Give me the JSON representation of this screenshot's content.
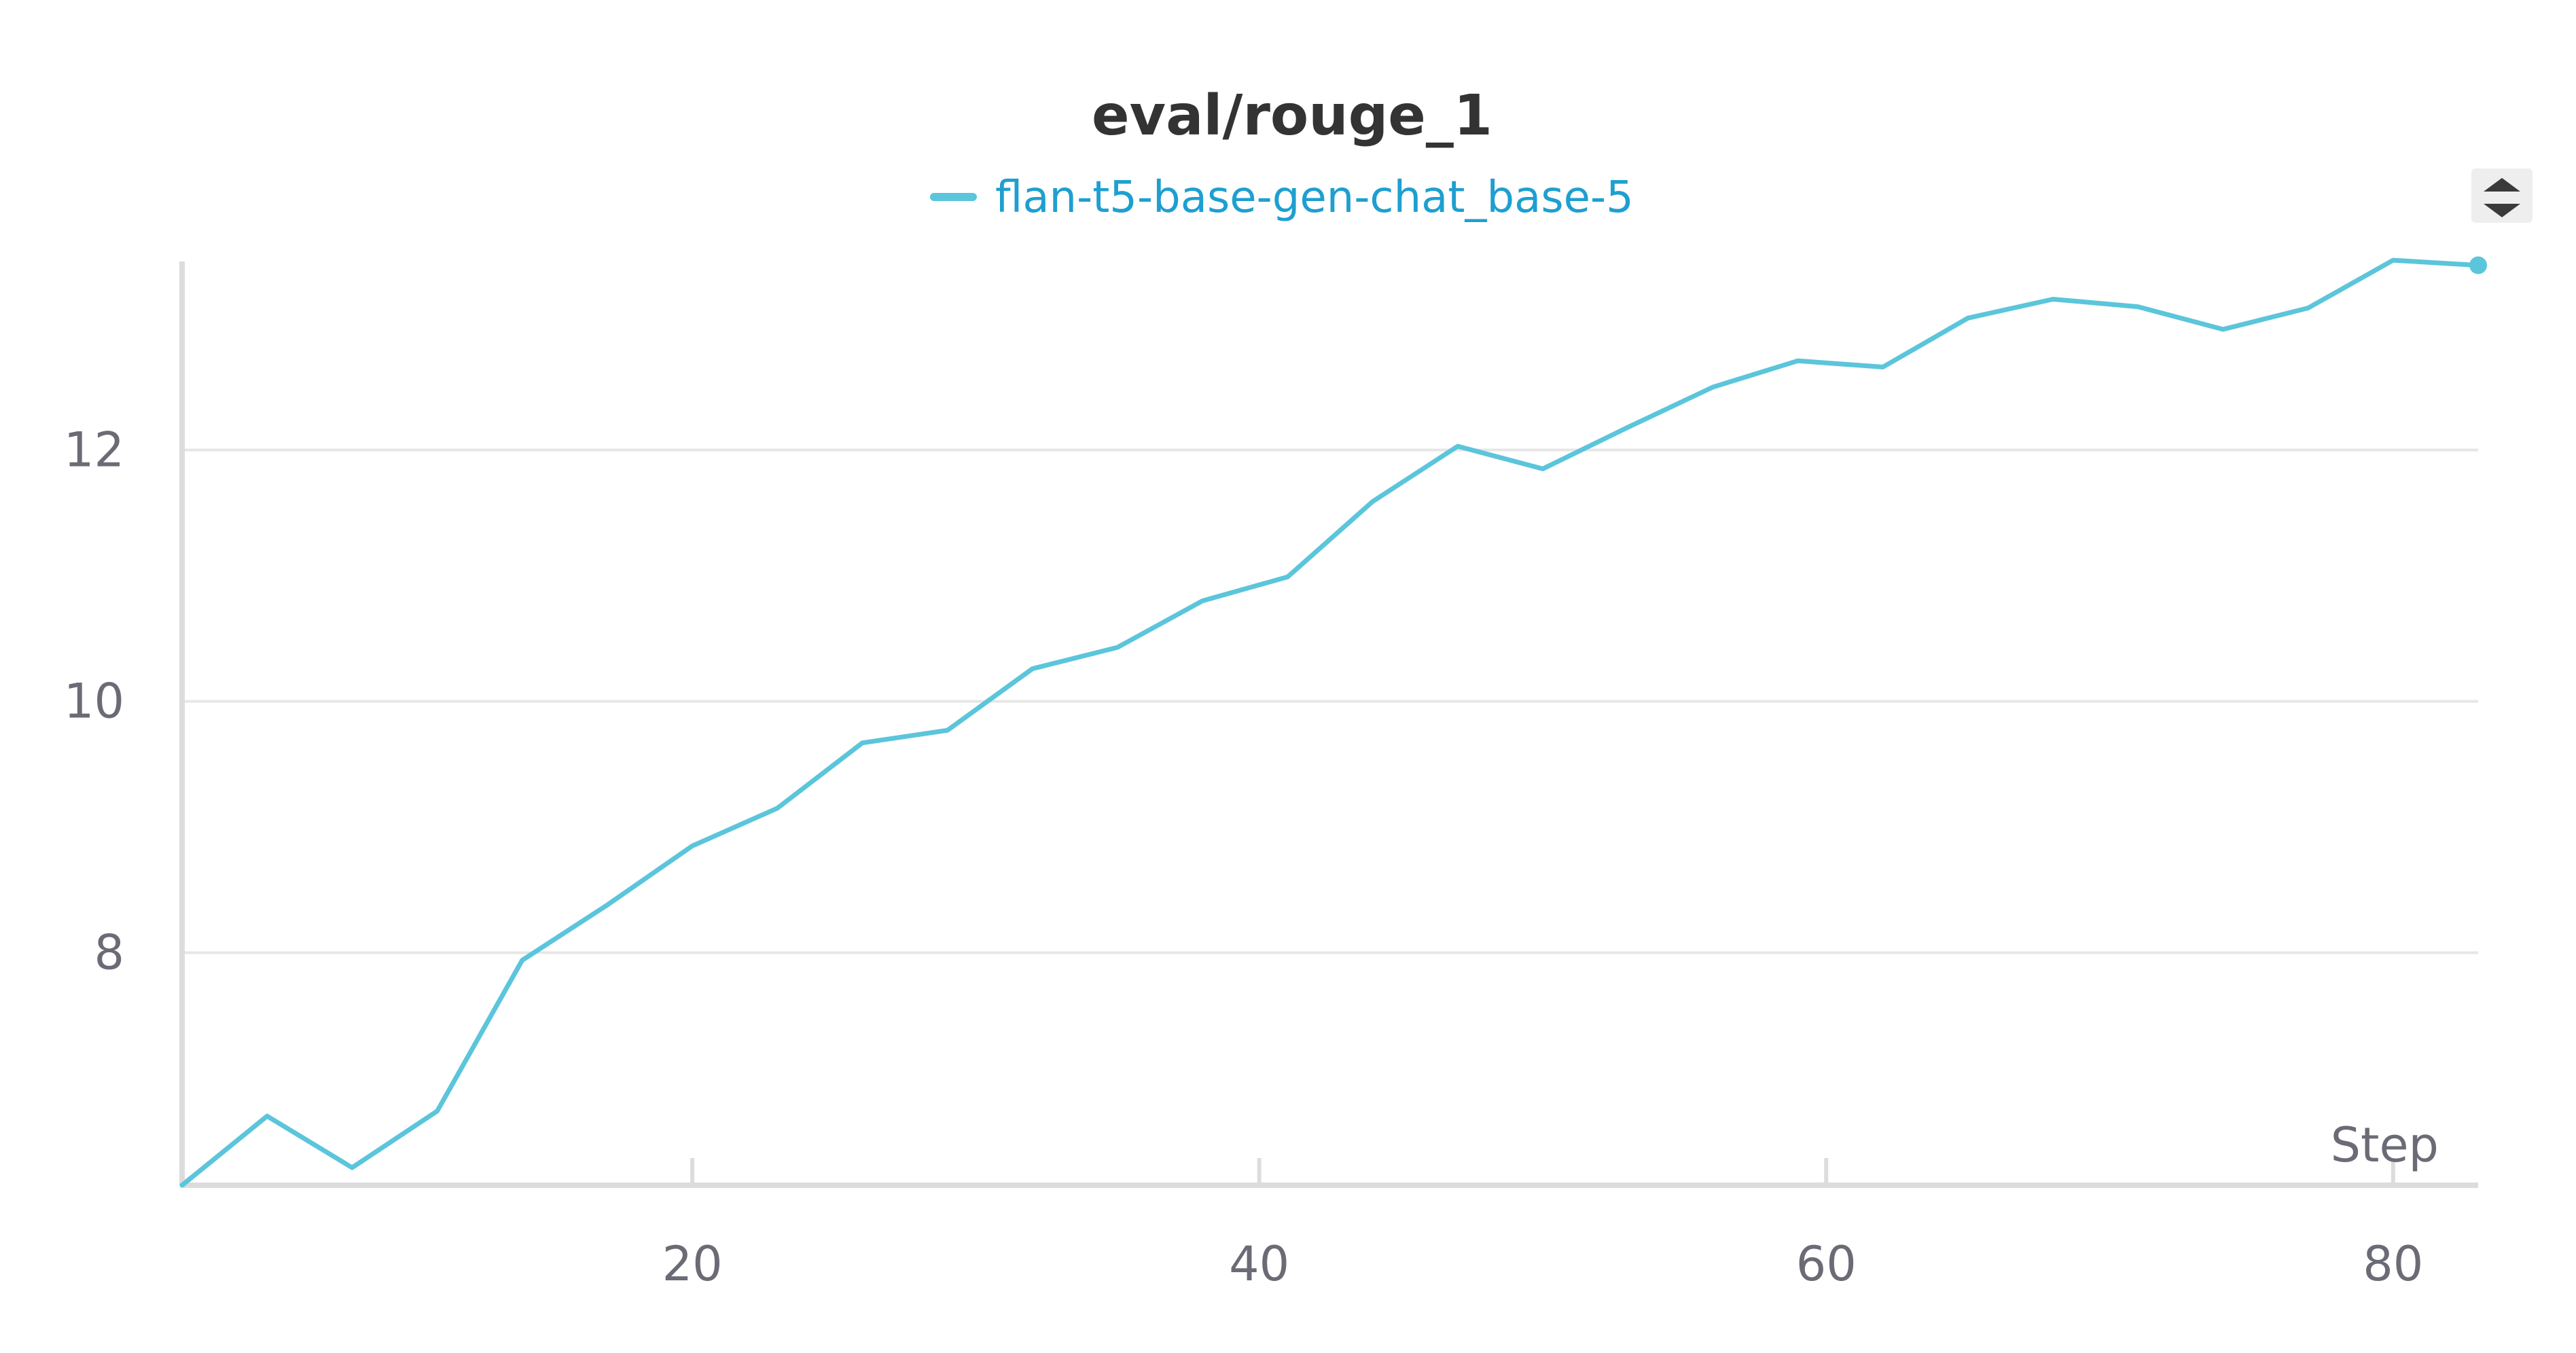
{
  "chart_data": {
    "type": "line",
    "title": "eval/rouge_1",
    "xlabel": "Step",
    "ylabel": "",
    "xlim": [
      2,
      83
    ],
    "ylim": [
      6.15,
      13.5
    ],
    "x_ticks": [
      20,
      40,
      60,
      80
    ],
    "x_tick_labels": [
      "20",
      "40",
      "60",
      "80"
    ],
    "y_ticks": [
      8,
      10,
      12
    ],
    "y_tick_labels": [
      "8",
      "10",
      "12"
    ],
    "grid": "horizontal",
    "legend_position": "top-center",
    "series": [
      {
        "name": "flan-t5-base-gen-chat_base-5",
        "color": "#5bc5db",
        "legend_text_color": "#1e9fd0",
        "x": [
          2,
          5,
          8,
          11,
          14,
          17,
          20,
          23,
          26,
          29,
          32,
          35,
          38,
          41,
          44,
          47,
          50,
          53,
          56,
          59,
          62,
          65,
          68,
          71,
          74,
          77,
          80,
          83
        ],
        "y": [
          6.15,
          6.7,
          6.29,
          6.74,
          7.94,
          8.38,
          8.85,
          9.15,
          9.67,
          9.77,
          10.26,
          10.43,
          10.8,
          10.99,
          11.59,
          12.03,
          11.85,
          12.18,
          12.5,
          12.71,
          12.66,
          13.05,
          13.2,
          13.14,
          12.96,
          13.13,
          13.51,
          13.47
        ]
      }
    ]
  },
  "controls": {
    "scroll_icon": "up-down-arrows-icon"
  }
}
